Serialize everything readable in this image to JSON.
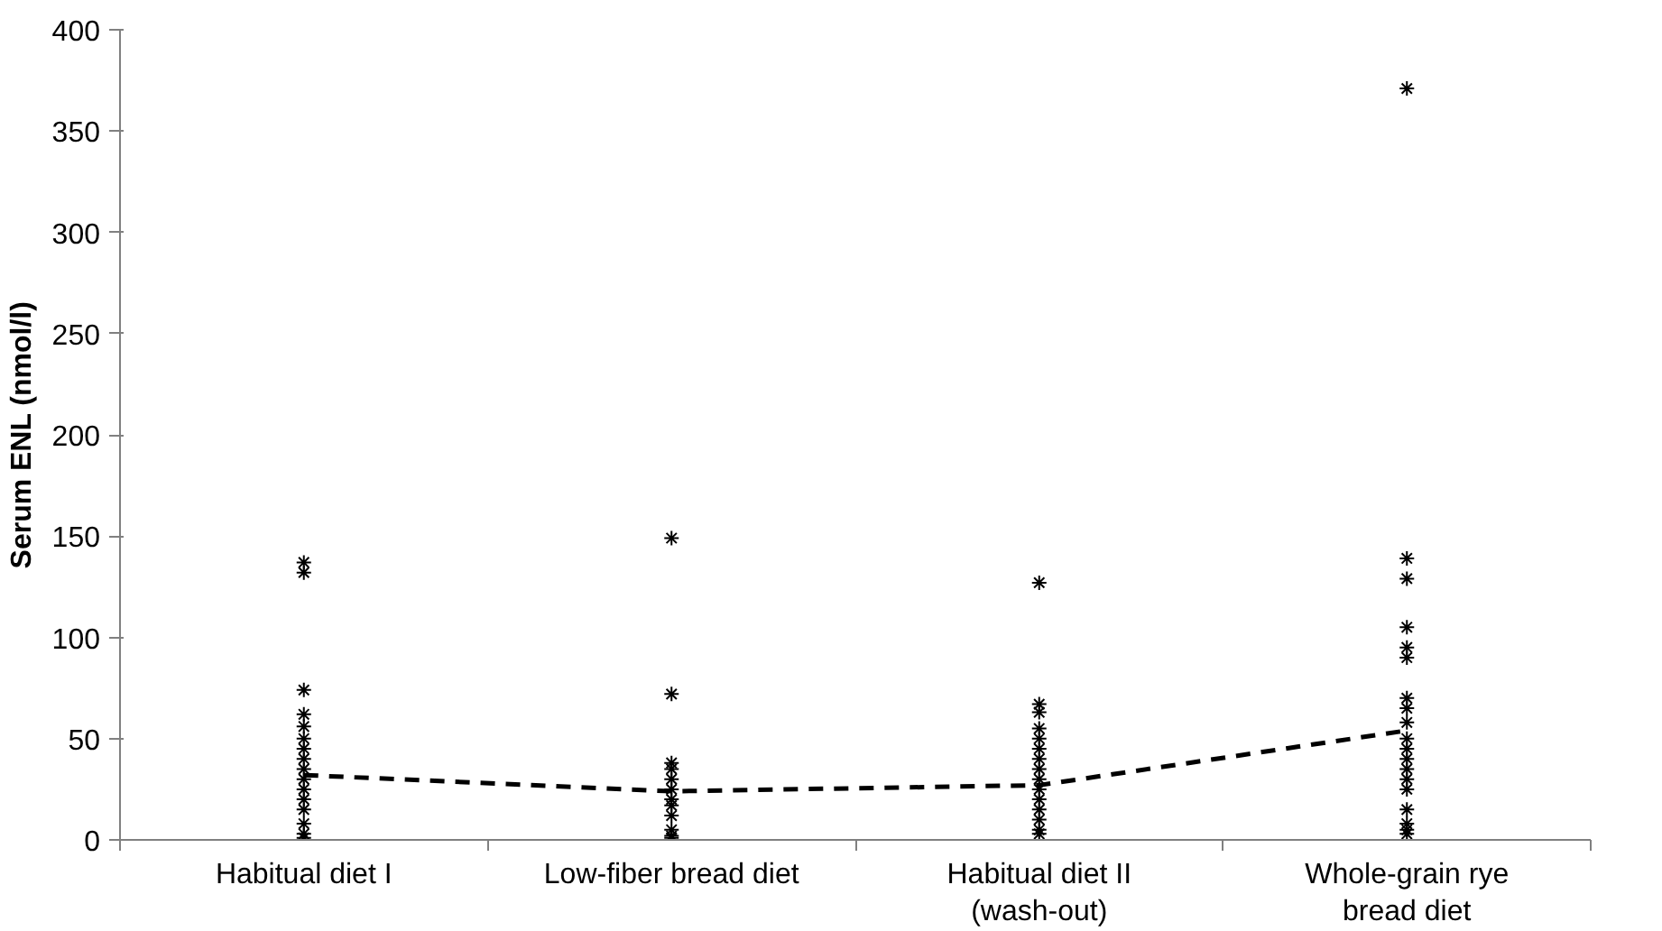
{
  "chart_data": {
    "type": "scatter",
    "ylabel": "Serum ENL (nmol/l)",
    "categories": [
      "Habitual diet I",
      "Low-fiber bread diet",
      "Habitual diet II\n(wash-out)",
      "Whole-grain rye\nbread diet"
    ],
    "ylim": [
      0,
      400
    ],
    "yticks": [
      0,
      50,
      100,
      150,
      200,
      250,
      300,
      350,
      400
    ],
    "grid": false,
    "series": [
      {
        "marker": "cross",
        "color": "#000000",
        "x": [
          "Habitual diet I",
          "Habitual diet I",
          "Habitual diet I",
          "Habitual diet I",
          "Habitual diet I",
          "Habitual diet I",
          "Habitual diet I",
          "Habitual diet I",
          "Habitual diet I",
          "Habitual diet I",
          "Habitual diet I",
          "Habitual diet I",
          "Habitual diet I",
          "Habitual diet I",
          "Habitual diet I",
          "Habitual diet I"
        ],
        "values": [
          137,
          132,
          74,
          62,
          56,
          50,
          45,
          40,
          35,
          30,
          25,
          20,
          15,
          8,
          3,
          1
        ]
      },
      {
        "marker": "cross",
        "color": "#000000",
        "x": [
          "Low-fiber bread diet",
          "Low-fiber bread diet",
          "Low-fiber bread diet",
          "Low-fiber bread diet",
          "Low-fiber bread diet",
          "Low-fiber bread diet",
          "Low-fiber bread diet",
          "Low-fiber bread diet",
          "Low-fiber bread diet",
          "Low-fiber bread diet",
          "Low-fiber bread diet",
          "Low-fiber bread diet"
        ],
        "values": [
          149,
          72,
          38,
          35,
          30,
          25,
          20,
          17,
          12,
          5,
          2,
          1
        ]
      },
      {
        "marker": "cross",
        "color": "#000000",
        "x": [
          "Habitual diet II\n(wash-out)",
          "Habitual diet II\n(wash-out)",
          "Habitual diet II\n(wash-out)",
          "Habitual diet II\n(wash-out)",
          "Habitual diet II\n(wash-out)",
          "Habitual diet II\n(wash-out)",
          "Habitual diet II\n(wash-out)",
          "Habitual diet II\n(wash-out)",
          "Habitual diet II\n(wash-out)",
          "Habitual diet II\n(wash-out)",
          "Habitual diet II\n(wash-out)",
          "Habitual diet II\n(wash-out)",
          "Habitual diet II\n(wash-out)",
          "Habitual diet II\n(wash-out)",
          "Habitual diet II\n(wash-out)"
        ],
        "values": [
          127,
          67,
          63,
          55,
          50,
          45,
          40,
          35,
          30,
          25,
          20,
          15,
          10,
          5,
          3
        ]
      },
      {
        "marker": "cross",
        "color": "#000000",
        "x": [
          "Whole-grain rye\nbread diet",
          "Whole-grain rye\nbread diet",
          "Whole-grain rye\nbread diet",
          "Whole-grain rye\nbread diet",
          "Whole-grain rye\nbread diet",
          "Whole-grain rye\nbread diet",
          "Whole-grain rye\nbread diet",
          "Whole-grain rye\nbread diet",
          "Whole-grain rye\nbread diet",
          "Whole-grain rye\nbread diet",
          "Whole-grain rye\nbread diet",
          "Whole-grain rye\nbread diet",
          "Whole-grain rye\nbread diet",
          "Whole-grain rye\nbread diet",
          "Whole-grain rye\nbread diet",
          "Whole-grain rye\nbread diet",
          "Whole-grain rye\nbread diet",
          "Whole-grain rye\nbread diet",
          "Whole-grain rye\nbread diet"
        ],
        "values": [
          371,
          139,
          129,
          105,
          95,
          90,
          70,
          65,
          58,
          50,
          45,
          40,
          35,
          30,
          25,
          15,
          8,
          5,
          3
        ]
      },
      {
        "type": "line",
        "marker": "none",
        "line_style": "dashed",
        "color": "#000000",
        "values": [
          32,
          24,
          27,
          54
        ]
      }
    ]
  }
}
